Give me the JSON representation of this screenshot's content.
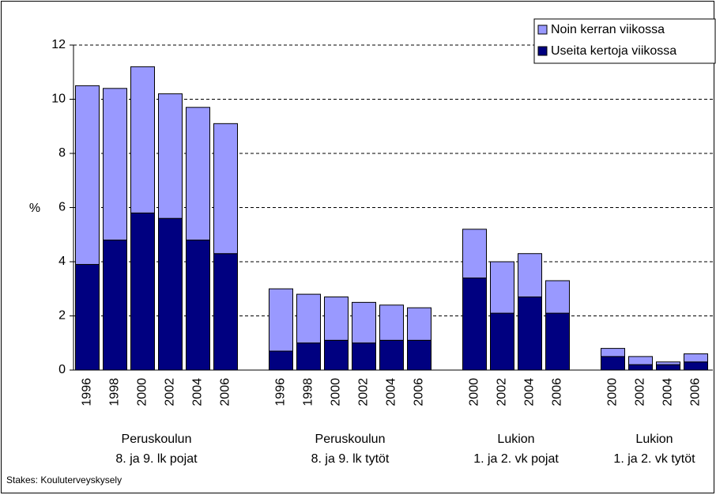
{
  "chart_data": {
    "type": "stacked_bar",
    "y_label": "%",
    "source": "Stakes: Kouluterveyskysely",
    "categories": [
      "1996",
      "1998",
      "2000",
      "2002",
      "2004",
      "2006",
      null,
      "1996",
      "1998",
      "2000",
      "2002",
      "2004",
      "2006",
      null,
      "2000",
      "2002",
      "2004",
      "2006",
      null,
      "2000",
      "2002",
      "2004",
      "2006"
    ],
    "groups": [
      [
        "Peruskoulun",
        "8. ja 9. lk pojat"
      ],
      [
        "Peruskoulun",
        "8. ja 9. lk tytöt"
      ],
      [
        "Lukion",
        "1. ja 2. vk pojat"
      ],
      [
        "Lukion",
        "1. ja 2. vk tytöt"
      ]
    ],
    "series": [
      {
        "name": "Useita kertoja viikossa",
        "color": "#000080",
        "values": [
          3.9,
          4.8,
          5.8,
          5.6,
          4.8,
          4.3,
          null,
          0.7,
          1.0,
          1.1,
          1.0,
          1.1,
          1.1,
          null,
          3.4,
          2.1,
          2.7,
          2.1,
          null,
          0.5,
          0.2,
          0.2,
          0.3
        ]
      },
      {
        "name": "Noin kerran viikossa",
        "color": "#9999ff",
        "values": [
          6.6,
          5.6,
          5.4,
          4.6,
          4.9,
          4.8,
          null,
          2.3,
          1.8,
          1.6,
          1.5,
          1.3,
          1.2,
          null,
          1.8,
          1.9,
          1.6,
          1.2,
          null,
          0.3,
          0.3,
          0.1,
          0.3
        ]
      }
    ],
    "ylim": [
      0,
      12
    ],
    "yticks": [
      0,
      2,
      4,
      6,
      8,
      10,
      12
    ],
    "grid": true,
    "legend": "top-right"
  }
}
